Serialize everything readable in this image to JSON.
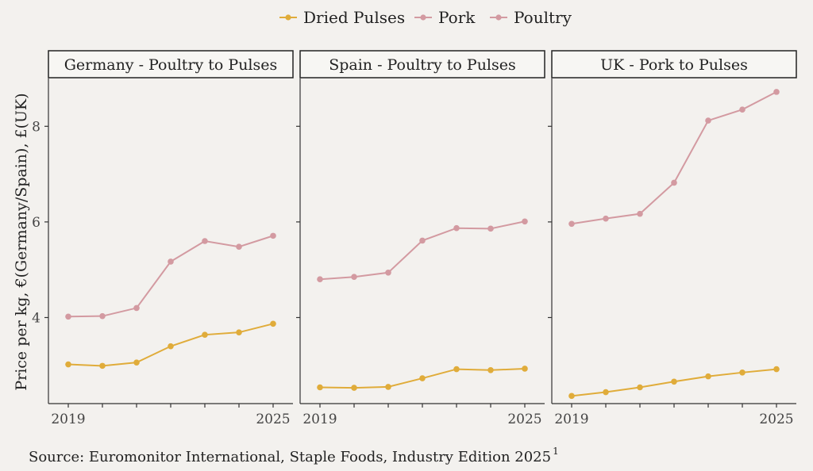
{
  "chart_data": {
    "type": "line",
    "ylabel": "Price per kg, €(Germany/Spain), £(UK)",
    "legend": {
      "placement": "top",
      "entries": [
        {
          "name": "Dried Pulses",
          "color": "#e0ac3a"
        },
        {
          "name": "Pork",
          "color": "#d39aa1"
        },
        {
          "name": "Poultry",
          "color": "#d39aa1"
        }
      ]
    },
    "ylim": [
      2.2,
      9.0
    ],
    "yticks": [
      4,
      6,
      8
    ],
    "x": [
      2019,
      2020,
      2021,
      2022,
      2023,
      2024,
      2025
    ],
    "xticks": [
      2019,
      2025
    ],
    "grid": false,
    "panels": [
      {
        "title": "Germany - Poultry to Pulses",
        "series": [
          {
            "name": "Poultry",
            "values": [
              4.02,
              4.03,
              4.2,
              5.17,
              5.6,
              5.48,
              5.71
            ]
          },
          {
            "name": "Dried Pulses",
            "values": [
              3.02,
              2.99,
              3.06,
              3.4,
              3.64,
              3.69,
              3.87
            ]
          }
        ]
      },
      {
        "title": "Spain - Poultry to Pulses",
        "series": [
          {
            "name": "Poultry",
            "values": [
              4.8,
              4.85,
              4.94,
              5.61,
              5.87,
              5.86,
              6.01
            ]
          },
          {
            "name": "Dried Pulses",
            "values": [
              2.54,
              2.53,
              2.55,
              2.73,
              2.92,
              2.9,
              2.93
            ]
          }
        ]
      },
      {
        "title": "UK - Pork to Pulses",
        "series": [
          {
            "name": "Pork",
            "values": [
              5.96,
              6.07,
              6.17,
              6.82,
              8.12,
              8.35,
              8.72
            ]
          },
          {
            "name": "Dried Pulses",
            "values": [
              2.36,
              2.44,
              2.54,
              2.66,
              2.77,
              2.85,
              2.92
            ]
          }
        ]
      }
    ]
  },
  "source": {
    "text": "Source: Euromonitor International, Staple Foods, Industry Edition 2025",
    "superscript": "1"
  }
}
